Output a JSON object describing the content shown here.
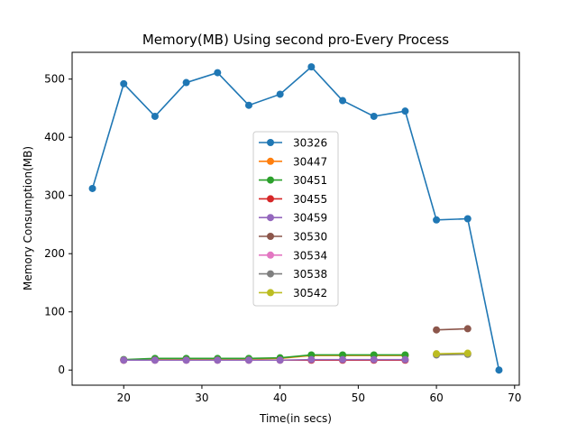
{
  "chart_data": {
    "type": "line",
    "title": "Memory(MB) Using second pro-Every Process",
    "xlabel": "Time(in secs)",
    "ylabel": "Memory Consumption(MB)",
    "xlim": [
      13.4,
      70.6
    ],
    "ylim": [
      -26,
      546
    ],
    "xticks": [
      20,
      30,
      40,
      50,
      60,
      70
    ],
    "yticks": [
      0,
      100,
      200,
      300,
      400,
      500
    ],
    "grid": false,
    "legend_position": "center",
    "series": [
      {
        "name": "30326",
        "color": "#1f77b4",
        "x": [
          16,
          20,
          24,
          28,
          32,
          36,
          40,
          44,
          48,
          52,
          56,
          60,
          64,
          68
        ],
        "y": [
          312,
          492,
          436,
          494,
          511,
          455,
          474,
          521,
          463,
          436,
          445,
          258,
          260,
          0
        ]
      },
      {
        "name": "30447",
        "color": "#ff7f0e",
        "x": [
          20,
          24,
          28,
          32,
          36,
          40,
          44,
          48,
          52,
          56
        ],
        "y": [
          17,
          19,
          19,
          19,
          19,
          20,
          25,
          25,
          25,
          25
        ]
      },
      {
        "name": "30451",
        "color": "#2ca02c",
        "x": [
          20,
          24,
          28,
          32,
          36,
          40,
          44,
          48,
          52,
          56
        ],
        "y": [
          18,
          20,
          20,
          20,
          20,
          21,
          26,
          26,
          26,
          26
        ]
      },
      {
        "name": "30455",
        "color": "#d62728",
        "x": [
          20,
          24,
          28,
          32,
          36,
          40,
          44,
          48,
          52,
          56
        ],
        "y": [
          17,
          17,
          17,
          17,
          17,
          17,
          17,
          17,
          17,
          17
        ]
      },
      {
        "name": "30459",
        "color": "#9467bd",
        "x": [
          20,
          24,
          28,
          32,
          36,
          40,
          44,
          48,
          52,
          56
        ],
        "y": [
          17,
          17,
          17,
          17,
          17,
          17,
          18,
          18,
          18,
          18
        ]
      },
      {
        "name": "30530",
        "color": "#8c564b",
        "x": [
          60,
          64
        ],
        "y": [
          69,
          71
        ]
      },
      {
        "name": "30534",
        "color": "#e377c2",
        "x": [
          60,
          64
        ],
        "y": [
          27,
          28
        ]
      },
      {
        "name": "30538",
        "color": "#7f7f7f",
        "x": [
          60,
          64
        ],
        "y": [
          26,
          27
        ]
      },
      {
        "name": "30542",
        "color": "#bcbd22",
        "x": [
          60,
          64
        ],
        "y": [
          28,
          29
        ]
      }
    ]
  }
}
